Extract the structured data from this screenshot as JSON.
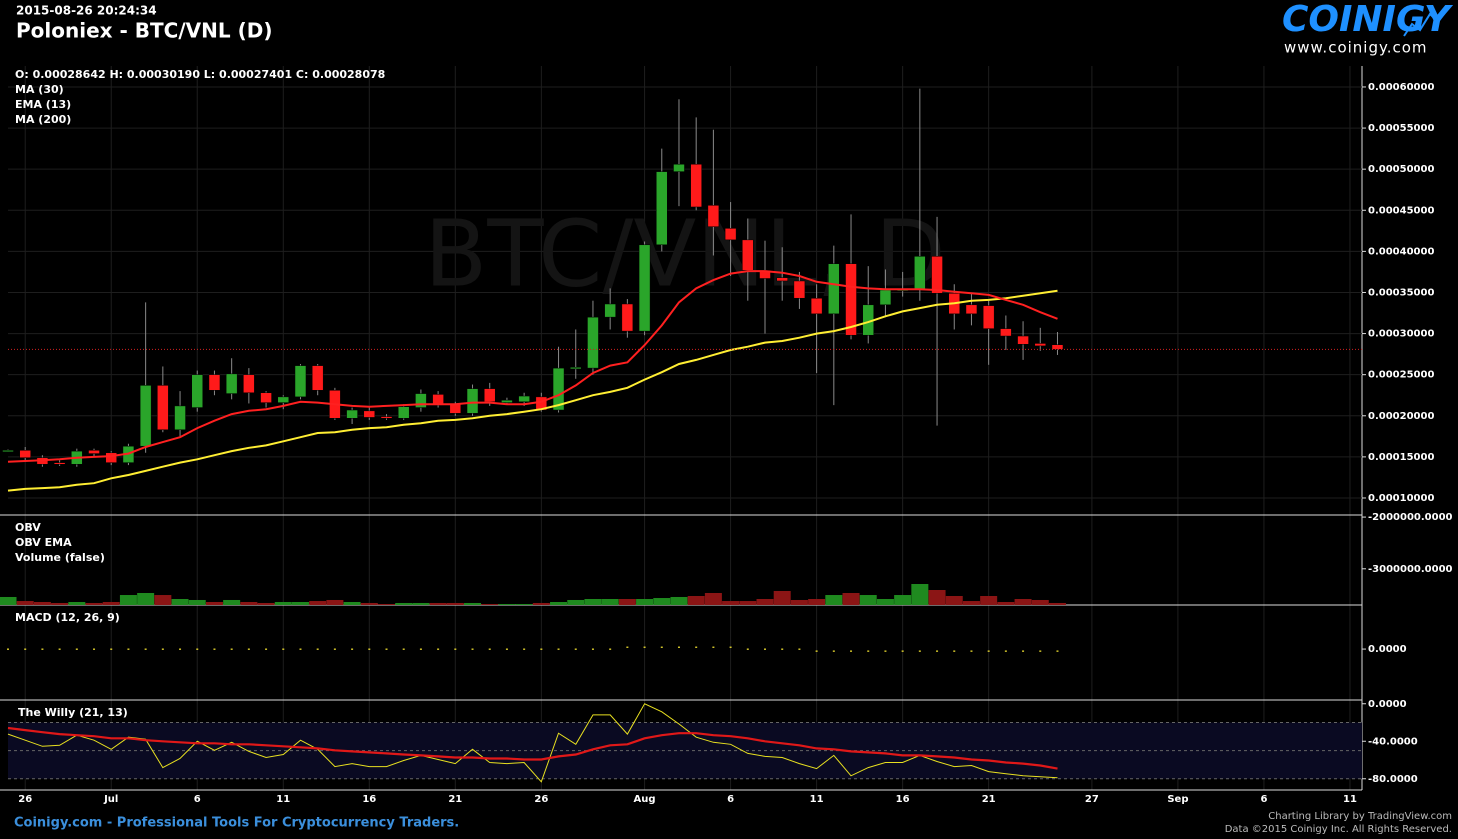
{
  "header": {
    "timestamp": "2015-08-26 20:24:34",
    "title": "Poloniex - BTC/VNL (D)",
    "logo": "COINIGY",
    "site": "www.coinigy.com"
  },
  "footer": {
    "tagline": "Coinigy.com - Professional Tools For Cryptocurrency Traders.",
    "credit": "Charting Library by TradingView.com",
    "copyright": "Data ©2015 Coinigy Inc. All Rights Reserved."
  },
  "chart_data": [
    {
      "type": "candlestick",
      "watermark": "BTC/VNL, D",
      "ohlc_label": "O: 0.00028642 H: 0.00030190 L: 0.00027401 C: 0.00028078",
      "extra_legend": "MA (200)",
      "x": [
        -1,
        0,
        1,
        2,
        3,
        4,
        5,
        6,
        7,
        8,
        9,
        10,
        11,
        12,
        13,
        14,
        15,
        16,
        17,
        18,
        19,
        20,
        21,
        22,
        23,
        24,
        25,
        26,
        27,
        28,
        29,
        30,
        31,
        32,
        33,
        34,
        35,
        36,
        37,
        38,
        39,
        40,
        41,
        42,
        43,
        44,
        45,
        46,
        47,
        48,
        49,
        50,
        51,
        52,
        53,
        54,
        55,
        56,
        57,
        58,
        59,
        60
      ],
      "open": [
        0.000157,
        0.000158,
        0.000149,
        0.000143,
        0.000141,
        0.000158,
        0.000155,
        0.000143,
        0.000163,
        0.000237,
        0.000183,
        0.00021,
        0.00025,
        0.000227,
        0.00025,
        0.000228,
        0.000216,
        0.000223,
        0.000261,
        0.000231,
        0.000197,
        0.000206,
        0.000199,
        0.000197,
        0.00021,
        0.000226,
        0.000214,
        0.000203,
        0.000233,
        0.000216,
        0.000217,
        0.000223,
        0.000207,
        0.000257,
        0.000258,
        0.00032,
        0.000336,
        0.000303,
        0.000408,
        0.000497,
        0.000506,
        0.000456,
        0.000428,
        0.000414,
        0.000377,
        0.000368,
        0.000364,
        0.000343,
        0.000324,
        0.000385,
        0.000298,
        0.000335,
        0.000352,
        0.000354,
        0.000394,
        0.000349,
        0.000335,
        0.000334,
        0.000306,
        0.000297,
        0.000288,
        0.00028642
      ],
      "high": [
        0.000159,
        0.000162,
        0.000152,
        0.000146,
        0.00016,
        0.00016,
        0.000157,
        0.000166,
        0.000338,
        0.00026,
        0.00023,
        0.000255,
        0.000255,
        0.00027,
        0.000258,
        0.00023,
        0.000225,
        0.000263,
        0.000263,
        0.000234,
        0.00021,
        0.00021,
        0.000202,
        0.000214,
        0.000232,
        0.00023,
        0.000217,
        0.000238,
        0.00024,
        0.000222,
        0.000228,
        0.000228,
        0.000284,
        0.000305,
        0.00034,
        0.000355,
        0.000342,
        0.000412,
        0.000525,
        0.000585,
        0.000563,
        0.000548,
        0.00046,
        0.00044,
        0.000413,
        0.000405,
        0.000375,
        0.00036,
        0.000407,
        0.000445,
        0.000382,
        0.000378,
        0.000375,
        0.000598,
        0.000442,
        0.00036,
        0.00035,
        0.00034,
        0.000322,
        0.000315,
        0.000307,
        0.0003019
      ],
      "low": [
        0.000156,
        0.000145,
        0.000138,
        0.000139,
        0.000138,
        0.00015,
        0.00014,
        0.00014,
        0.000155,
        0.00018,
        0.000175,
        0.000205,
        0.000225,
        0.00022,
        0.000215,
        0.00021,
        0.000208,
        0.00022,
        0.000225,
        0.000195,
        0.00019,
        0.000195,
        0.000195,
        0.000195,
        0.000205,
        0.00021,
        0.0002,
        0.0002,
        0.000212,
        0.000214,
        0.000212,
        0.000205,
        0.000204,
        0.000245,
        0.00025,
        0.000305,
        0.000295,
        0.000298,
        0.0004,
        0.000455,
        0.00045,
        0.000395,
        0.00037,
        0.00034,
        0.0003,
        0.00034,
        0.00033,
        0.000252,
        0.000213,
        0.000293,
        0.000288,
        0.00032,
        0.000345,
        0.00034,
        0.000188,
        0.000305,
        0.00031,
        0.000262,
        0.00028,
        0.000268,
        0.000279,
        0.00027401
      ],
      "close": [
        0.000158,
        0.000149,
        0.000141,
        0.000141,
        0.000157,
        0.000154,
        0.000143,
        0.000163,
        0.000237,
        0.000183,
        0.000212,
        0.00025,
        0.000231,
        0.000251,
        0.000228,
        0.000216,
        0.000223,
        0.000261,
        0.000231,
        0.000197,
        0.000207,
        0.000198,
        0.000197,
        0.000211,
        0.000227,
        0.000213,
        0.000203,
        0.000233,
        0.000217,
        0.000219,
        0.000224,
        0.000207,
        0.000258,
        0.000259,
        0.00032,
        0.000336,
        0.000303,
        0.000408,
        0.000497,
        0.000506,
        0.000454,
        0.00043,
        0.000414,
        0.000377,
        0.000367,
        0.000364,
        0.000343,
        0.000324,
        0.000385,
        0.000298,
        0.000335,
        0.000353,
        0.000354,
        0.000394,
        0.000349,
        0.000324,
        0.000324,
        0.000306,
        0.000297,
        0.000287,
        0.000285,
        0.00028078
      ],
      "up_color": "#2aa52a",
      "down_color": "#ff1a1a",
      "last_price_color": "#d42020",
      "series": [
        {
          "name": "MA (30)",
          "color": "#ffee33",
          "values": [
            0.000109,
            0.000111,
            0.000112,
            0.000113,
            0.000116,
            0.000118,
            0.000124,
            0.000128,
            0.000133,
            0.000138,
            0.000143,
            0.000147,
            0.000152,
            0.000157,
            0.000161,
            0.000164,
            0.000169,
            0.000174,
            0.000179,
            0.00018,
            0.000183,
            0.000185,
            0.000186,
            0.000189,
            0.000191,
            0.000194,
            0.000195,
            0.000197,
            0.0002,
            0.000202,
            0.000205,
            0.000208,
            0.000213,
            0.000219,
            0.000225,
            0.000229,
            0.000234,
            0.000244,
            0.000253,
            0.000263,
            0.000268,
            0.000274,
            0.00028,
            0.000284,
            0.000289,
            0.000291,
            0.000295,
            0.0003,
            0.000303,
            0.000308,
            0.000314,
            0.000321,
            0.000327,
            0.000331,
            0.000335,
            0.000337,
            0.00034,
            0.000341,
            0.000343,
            0.000346,
            0.000349,
            0.000352
          ]
        },
        {
          "name": "EMA (13)",
          "color": "#ff2020",
          "values": [
            0.000144,
            0.000145,
            0.000146,
            0.000147,
            0.000149,
            0.00015,
            0.000151,
            0.000154,
            0.000162,
            0.000168,
            0.000174,
            0.000185,
            0.000194,
            0.000202,
            0.000206,
            0.000208,
            0.000212,
            0.000217,
            0.000216,
            0.000214,
            0.000212,
            0.000211,
            0.000212,
            0.000213,
            0.000214,
            0.000214,
            0.000214,
            0.000216,
            0.000216,
            0.000214,
            0.000214,
            0.000217,
            0.000225,
            0.000237,
            0.000252,
            0.000261,
            0.000265,
            0.000286,
            0.00031,
            0.000338,
            0.000355,
            0.000365,
            0.000373,
            0.000376,
            0.000376,
            0.000374,
            0.00037,
            0.000363,
            0.00036,
            0.000357,
            0.000355,
            0.000354,
            0.000354,
            0.000354,
            0.000353,
            0.000351,
            0.000349,
            0.000347,
            0.000341,
            0.000335,
            0.000326,
            0.000318
          ]
        }
      ],
      "ylim": [
        7.93e-05,
        0.0006255
      ],
      "yticks": [
        {
          "value": 0.0001,
          "label": "0.00010000"
        },
        {
          "value": 0.00015,
          "label": "0.00015000"
        },
        {
          "value": 0.0002,
          "label": "0.00020000"
        },
        {
          "value": 0.00025,
          "label": "0.00025000"
        },
        {
          "value": 0.0003,
          "label": "0.00030000"
        },
        {
          "value": 0.00035,
          "label": "0.00035000"
        },
        {
          "value": 0.0004,
          "label": "0.00040000"
        },
        {
          "value": 0.00045,
          "label": "0.00045000"
        },
        {
          "value": 0.0005,
          "label": "0.00050000"
        },
        {
          "value": 0.00055,
          "label": "0.00055000"
        },
        {
          "value": 0.0006,
          "label": "0.00060000"
        }
      ],
      "xlim": [
        -1,
        77.7
      ],
      "xticks": [
        {
          "value": 0,
          "label": "26"
        },
        {
          "value": 5,
          "label": "Jul"
        },
        {
          "value": 10,
          "label": "6"
        },
        {
          "value": 15,
          "label": "11"
        },
        {
          "value": 20,
          "label": "16"
        },
        {
          "value": 25,
          "label": "21"
        },
        {
          "value": 30,
          "label": "26"
        },
        {
          "value": 36,
          "label": "Aug"
        },
        {
          "value": 41,
          "label": "6"
        },
        {
          "value": 46,
          "label": "11"
        },
        {
          "value": 51,
          "label": "16"
        },
        {
          "value": 56,
          "label": "21"
        },
        {
          "value": 62,
          "label": "27"
        },
        {
          "value": 67,
          "label": "Sep"
        },
        {
          "value": 72,
          "label": "6"
        },
        {
          "value": 77,
          "label": "11"
        }
      ],
      "grid": true
    },
    {
      "type": "bar",
      "legend": [
        "OBV",
        "OBV EMA",
        "Volume (false)"
      ],
      "up_color": "#1f8a1f",
      "down_color": "#8b1515",
      "values": [
        -3545000,
        -3623000,
        -3642000,
        -3661000,
        -3642000,
        -3661000,
        -3642000,
        -3507000,
        -3468000,
        -3507000,
        -3584000,
        -3603000,
        -3642000,
        -3603000,
        -3642000,
        -3661000,
        -3642000,
        -3642000,
        -3623000,
        -3603000,
        -3642000,
        -3661000,
        -3681000,
        -3661000,
        -3661000,
        -3661000,
        -3661000,
        -3661000,
        -3681000,
        -3681000,
        -3681000,
        -3661000,
        -3642000,
        -3603000,
        -3584000,
        -3584000,
        -3584000,
        -3584000,
        -3565000,
        -3545000,
        -3526000,
        -3468000,
        -3623000,
        -3623000,
        -3584000,
        -3429000,
        -3603000,
        -3584000,
        -3507000,
        -3468000,
        -3507000,
        -3584000,
        -3507000,
        -3294000,
        -3410000,
        -3526000,
        -3623000,
        -3526000,
        -3642000,
        -3584000,
        -3603000,
        -3661000
      ],
      "ylim": [
        -3700000,
        -1960000
      ],
      "yticks": [
        {
          "value": -2000000,
          "label": "-2000000.0000"
        },
        {
          "value": -3000000,
          "label": "-3000000.0000"
        }
      ]
    },
    {
      "type": "dots",
      "title": "MACD (12, 26, 9)",
      "color": "#ffee33",
      "values": [
        0,
        0,
        0,
        0,
        0,
        0,
        0,
        0,
        0,
        0,
        0,
        0,
        0,
        0,
        0,
        0,
        0,
        0,
        0,
        0,
        0,
        0,
        0,
        0,
        0,
        0,
        0,
        0,
        0,
        0,
        0,
        0,
        0,
        0,
        0,
        0,
        2e-06,
        2e-06,
        2e-06,
        2e-06,
        2e-06,
        2e-06,
        2e-06,
        0,
        0,
        0,
        0,
        -2e-06,
        -2e-06,
        -2e-06,
        -2e-06,
        -2e-06,
        -2e-06,
        -2e-06,
        -2e-06,
        -2e-06,
        -2e-06,
        -2e-06,
        -2e-06,
        -2e-06,
        -2e-06,
        -2e-06
      ],
      "ylim": [
        -5.2e-05,
        4.5e-05
      ],
      "yticks": [
        {
          "value": 0,
          "label": "0.0000"
        }
      ]
    },
    {
      "type": "line",
      "title": "The Willy (21, 13)",
      "levels": [
        -20,
        -50,
        -80
      ],
      "series": [
        {
          "color": "#e8e020",
          "values": [
            -32.4,
            -38.9,
            -45.4,
            -44.3,
            -33.5,
            -38.9,
            -48.6,
            -35.7,
            -37.8,
            -68.1,
            -58.4,
            -40.0,
            -49.7,
            -41.1,
            -50.8,
            -57.3,
            -54.1,
            -38.9,
            -48.6,
            -67.0,
            -63.8,
            -67.0,
            -67.0,
            -60.5,
            -55.1,
            -59.5,
            -63.8,
            -48.6,
            -62.7,
            -63.8,
            -62.7,
            -83.2,
            -31.4,
            -43.2,
            -11.9,
            -11.9,
            -32.4,
            0,
            -8.6,
            -21.6,
            -35.7,
            -41.1,
            -43.2,
            -53.0,
            -56.2,
            -57.3,
            -63.8,
            -69.2,
            -55.1,
            -76.8,
            -68.1,
            -62.7,
            -62.7,
            -55.1,
            -61.6,
            -67.0,
            -65.9,
            -72.4,
            -74.6,
            -76.8,
            -77.8,
            -78.9
          ]
        },
        {
          "color": "#e01818",
          "values": [
            -25.9,
            -28.1,
            -30.3,
            -32.4,
            -33.5,
            -34.6,
            -36.8,
            -36.8,
            -38.9,
            -40.0,
            -41.1,
            -42.2,
            -42.2,
            -43.2,
            -43.2,
            -44.3,
            -45.4,
            -46.5,
            -47.6,
            -49.7,
            -50.8,
            -51.9,
            -53.0,
            -54.1,
            -55.1,
            -56.2,
            -57.3,
            -57.3,
            -58.4,
            -58.4,
            -59.5,
            -59.5,
            -56.2,
            -54.1,
            -48.6,
            -44.3,
            -43.2,
            -36.8,
            -33.5,
            -31.4,
            -31.4,
            -33.5,
            -34.6,
            -36.8,
            -40.0,
            -42.2,
            -44.3,
            -47.6,
            -48.6,
            -50.8,
            -51.9,
            -53.0,
            -55.1,
            -55.1,
            -56.2,
            -57.3,
            -59.5,
            -60.5,
            -62.7,
            -63.8,
            -65.9,
            -69.2
          ]
        }
      ],
      "ylim": [
        -92,
        4
      ],
      "yticks": [
        {
          "value": 0,
          "label": "0.0000"
        },
        {
          "value": -40,
          "label": "-40.0000"
        },
        {
          "value": -80,
          "label": "-80.0000"
        }
      ]
    }
  ]
}
